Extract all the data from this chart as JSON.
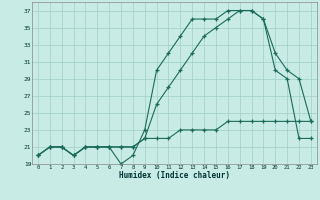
{
  "xlabel": "Humidex (Indice chaleur)",
  "bg_color": "#c8ebe5",
  "grid_color": "#a0cfc8",
  "line_color": "#1a6b5a",
  "xlim": [
    -0.5,
    23.5
  ],
  "ylim": [
    19,
    38
  ],
  "xticks": [
    0,
    1,
    2,
    3,
    4,
    5,
    6,
    7,
    8,
    9,
    10,
    11,
    12,
    13,
    14,
    15,
    16,
    17,
    18,
    19,
    20,
    21,
    22,
    23
  ],
  "yticks": [
    19,
    21,
    23,
    25,
    27,
    29,
    31,
    33,
    35,
    37
  ],
  "line1_x": [
    0,
    1,
    2,
    3,
    4,
    5,
    6,
    7,
    8,
    9,
    10,
    11,
    12,
    13,
    14,
    15,
    16,
    17,
    18,
    19,
    20,
    21,
    22,
    23
  ],
  "line1_y": [
    20,
    21,
    21,
    20,
    21,
    21,
    21,
    21,
    21,
    22,
    22,
    22,
    23,
    23,
    23,
    23,
    24,
    24,
    24,
    24,
    24,
    24,
    24,
    24
  ],
  "line2_x": [
    0,
    1,
    2,
    3,
    4,
    5,
    6,
    7,
    8,
    9,
    10,
    11,
    12,
    13,
    14,
    15,
    16,
    17,
    18,
    19,
    20,
    21,
    22,
    23
  ],
  "line2_y": [
    20,
    21,
    21,
    20,
    21,
    21,
    21,
    19,
    20,
    23,
    30,
    32,
    34,
    36,
    36,
    36,
    37,
    37,
    37,
    36,
    30,
    29,
    22,
    22
  ],
  "line3_x": [
    0,
    1,
    2,
    3,
    4,
    5,
    6,
    7,
    8,
    9,
    10,
    11,
    12,
    13,
    14,
    15,
    16,
    17,
    18,
    19,
    20,
    21,
    22,
    23
  ],
  "line3_y": [
    20,
    21,
    21,
    20,
    21,
    21,
    21,
    21,
    21,
    22,
    26,
    28,
    30,
    32,
    34,
    35,
    36,
    37,
    37,
    36,
    32,
    30,
    29,
    24
  ]
}
